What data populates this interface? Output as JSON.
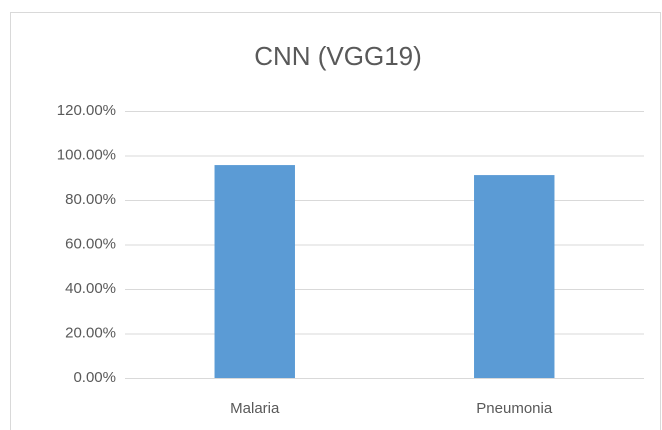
{
  "chart_data": {
    "type": "bar",
    "title": "CNN (VGG19)",
    "categories": [
      "Malaria",
      "Pneumonia"
    ],
    "values": [
      95.7,
      91.2
    ],
    "color": "#5b9bd5",
    "ylim": [
      0,
      120
    ],
    "yticks": [
      {
        "value": 0,
        "label": "0.00%"
      },
      {
        "value": 20,
        "label": "20.00%"
      },
      {
        "value": 40,
        "label": "40.00%"
      },
      {
        "value": 60,
        "label": "60.00%"
      },
      {
        "value": 80,
        "label": "80.00%"
      },
      {
        "value": 100,
        "label": "100.00%"
      },
      {
        "value": 120,
        "label": "120.00%"
      }
    ],
    "grid": true
  }
}
